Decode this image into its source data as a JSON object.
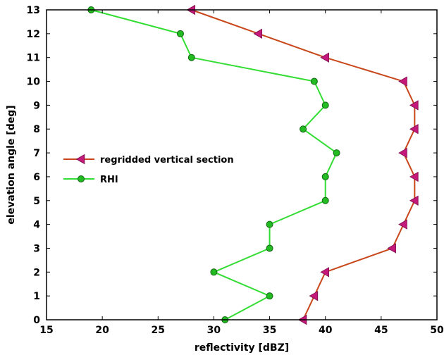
{
  "chart_data": {
    "type": "line",
    "xlabel": "reflectivity [dBZ]",
    "ylabel": "elevation angle [deg]",
    "xlim": [
      15,
      50
    ],
    "ylim": [
      0,
      13
    ],
    "xticks": [
      15,
      20,
      25,
      30,
      35,
      40,
      45,
      50
    ],
    "yticks": [
      0,
      1,
      2,
      3,
      4,
      5,
      6,
      7,
      8,
      9,
      10,
      11,
      12,
      13
    ],
    "grid": false,
    "legend_position": "center-left",
    "series": [
      {
        "name": "regridded vertical section",
        "color": "#c8461a",
        "marker_color": "#c4187a",
        "marker": "triangle-left",
        "x": [
          38,
          39,
          40,
          46,
          47,
          48,
          48,
          47,
          48,
          48,
          47,
          40,
          34,
          28
        ],
        "y": [
          0,
          1,
          2,
          3,
          4,
          5,
          6,
          7,
          8,
          9,
          10,
          11,
          12,
          13
        ]
      },
      {
        "name": "RHI",
        "color": "#33dd33",
        "marker_color": "#22bb22",
        "marker": "circle",
        "x": [
          31,
          35,
          30,
          35,
          35,
          40,
          40,
          41,
          38,
          40,
          39,
          28,
          27,
          19
        ],
        "y": [
          0,
          1,
          2,
          3,
          4,
          5,
          6,
          7,
          8,
          9,
          10,
          11,
          12,
          13
        ]
      }
    ]
  }
}
